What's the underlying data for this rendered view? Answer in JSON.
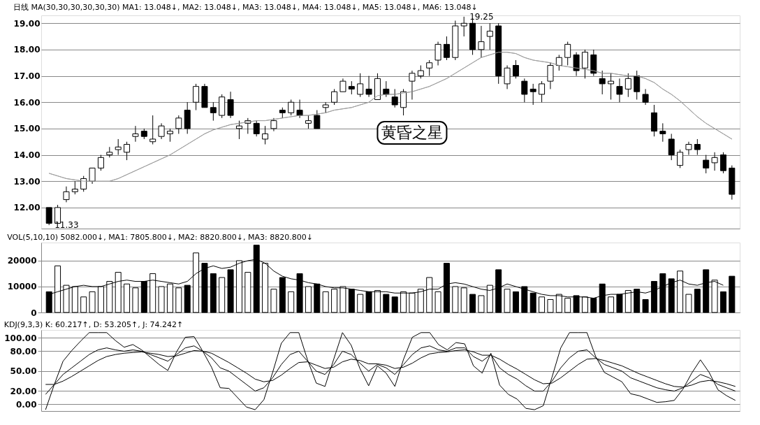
{
  "chart_data": [
    {
      "type": "candlestick",
      "title": "日线 MA(30,30,30,30,30,30) MA1: 13.048↓, MA2: 13.048↓, MA3: 13.048↓, MA4: 13.048↓, MA5: 13.048↓, MA6: 13.048↓",
      "categories": [
        null,
        null,
        null,
        null,
        null,
        null,
        null,
        null,
        null,
        null,
        null,
        null,
        null,
        null,
        null,
        null,
        null,
        null,
        null,
        null,
        null,
        null,
        null,
        null,
        null,
        null,
        null,
        null,
        null,
        null,
        null,
        null,
        null,
        null,
        null,
        null,
        null,
        null,
        null,
        null,
        null,
        null,
        null,
        null,
        null,
        null,
        null,
        null,
        null,
        null,
        null,
        null,
        null,
        null,
        null,
        null,
        null,
        null,
        null,
        null,
        null,
        null,
        null,
        null,
        null,
        null,
        null,
        null,
        null,
        null,
        null,
        null,
        null,
        null,
        null,
        null,
        null,
        null,
        null,
        null
      ],
      "ohlc": [
        [
          12.0,
          12.0,
          11.33,
          11.4
        ],
        [
          11.4,
          12.1,
          11.4,
          12.0
        ],
        [
          12.3,
          12.8,
          12.2,
          12.6
        ],
        [
          12.6,
          13.0,
          12.5,
          12.7
        ],
        [
          12.7,
          13.2,
          12.6,
          13.1
        ],
        [
          13.0,
          13.5,
          12.9,
          13.5
        ],
        [
          13.5,
          14.0,
          13.4,
          13.9
        ],
        [
          14.0,
          14.3,
          13.9,
          14.1
        ],
        [
          14.2,
          14.6,
          14.0,
          14.3
        ],
        [
          14.1,
          14.5,
          13.8,
          14.4
        ],
        [
          14.7,
          15.1,
          14.5,
          14.8
        ],
        [
          14.9,
          15.0,
          14.6,
          14.7
        ],
        [
          14.5,
          15.5,
          14.4,
          14.6
        ],
        [
          14.7,
          15.2,
          14.6,
          15.1
        ],
        [
          14.8,
          15.0,
          14.5,
          14.9
        ],
        [
          15.0,
          15.5,
          14.8,
          15.4
        ],
        [
          15.7,
          16.0,
          14.8,
          15.0
        ],
        [
          16.0,
          16.7,
          15.7,
          16.6
        ],
        [
          16.6,
          16.7,
          15.8,
          15.8
        ],
        [
          15.8,
          16.0,
          15.3,
          15.6
        ],
        [
          15.5,
          16.3,
          15.4,
          16.2
        ],
        [
          16.1,
          16.4,
          15.4,
          15.5
        ],
        [
          15.0,
          15.3,
          14.6,
          15.1
        ],
        [
          15.2,
          15.4,
          14.8,
          15.3
        ],
        [
          15.2,
          15.3,
          14.7,
          14.8
        ],
        [
          14.6,
          15.1,
          14.4,
          14.8
        ],
        [
          15.0,
          15.4,
          14.9,
          15.3
        ],
        [
          15.7,
          15.8,
          15.4,
          15.6
        ],
        [
          15.6,
          16.1,
          15.5,
          16.0
        ],
        [
          15.7,
          16.1,
          15.4,
          15.5
        ],
        [
          15.2,
          15.5,
          15.0,
          15.3
        ],
        [
          15.5,
          15.7,
          15.0,
          15.0
        ],
        [
          15.8,
          16.0,
          15.6,
          15.9
        ],
        [
          16.0,
          16.5,
          15.9,
          16.4
        ],
        [
          16.4,
          16.9,
          16.4,
          16.8
        ],
        [
          16.6,
          16.8,
          16.3,
          16.5
        ],
        [
          16.3,
          17.1,
          16.2,
          16.7
        ],
        [
          16.5,
          17.0,
          16.2,
          16.3
        ],
        [
          16.1,
          17.1,
          16.1,
          16.9
        ],
        [
          16.5,
          16.8,
          16.2,
          16.3
        ],
        [
          16.2,
          16.5,
          15.8,
          15.9
        ],
        [
          15.8,
          16.5,
          15.5,
          16.4
        ],
        [
          16.8,
          17.2,
          16.1,
          17.1
        ],
        [
          17.0,
          17.4,
          16.9,
          17.2
        ],
        [
          17.3,
          17.6,
          17.0,
          17.5
        ],
        [
          17.6,
          18.3,
          17.4,
          18.2
        ],
        [
          18.2,
          18.5,
          17.6,
          17.7
        ],
        [
          17.7,
          19.1,
          17.6,
          18.9
        ],
        [
          18.9,
          19.25,
          18.5,
          19.0
        ],
        [
          19.0,
          19.2,
          17.8,
          18.0
        ],
        [
          18.0,
          18.9,
          17.7,
          18.3
        ],
        [
          18.5,
          19.0,
          18.0,
          18.7
        ],
        [
          18.9,
          19.0,
          16.7,
          17.0
        ],
        [
          16.7,
          17.4,
          16.5,
          17.3
        ],
        [
          17.4,
          17.6,
          16.9,
          17.0
        ],
        [
          16.8,
          16.9,
          16.0,
          16.3
        ],
        [
          16.5,
          16.7,
          15.9,
          16.4
        ],
        [
          16.3,
          16.8,
          16.0,
          16.7
        ],
        [
          16.8,
          17.5,
          16.5,
          17.4
        ],
        [
          17.4,
          17.8,
          17.2,
          17.7
        ],
        [
          17.7,
          18.3,
          17.4,
          18.2
        ],
        [
          17.8,
          17.9,
          17.0,
          17.2
        ],
        [
          17.3,
          18.0,
          16.9,
          17.9
        ],
        [
          17.8,
          18.0,
          17.0,
          17.1
        ],
        [
          16.9,
          17.2,
          16.3,
          16.7
        ],
        [
          16.7,
          17.1,
          16.1,
          16.8
        ],
        [
          16.6,
          16.9,
          16.0,
          16.3
        ],
        [
          16.5,
          17.1,
          16.2,
          16.9
        ],
        [
          17.0,
          17.2,
          16.1,
          16.4
        ],
        [
          16.3,
          16.5,
          15.9,
          16.0
        ],
        [
          15.6,
          15.9,
          14.7,
          14.9
        ],
        [
          14.9,
          15.2,
          14.5,
          14.8
        ],
        [
          14.6,
          14.8,
          13.8,
          14.0
        ],
        [
          13.6,
          14.2,
          13.5,
          14.1
        ],
        [
          14.2,
          14.5,
          14.0,
          14.4
        ],
        [
          14.4,
          14.6,
          14.0,
          14.2
        ],
        [
          13.8,
          14.0,
          13.3,
          13.5
        ],
        [
          13.7,
          14.1,
          13.4,
          13.9
        ],
        [
          14.0,
          14.1,
          13.3,
          13.4
        ],
        [
          13.5,
          13.6,
          12.3,
          12.5
        ]
      ],
      "series": [
        {
          "type": "line",
          "color": "#a0a0a0",
          "values": [
            13.3,
            13.2,
            13.1,
            13.05,
            13.0,
            13.0,
            13.0,
            13.0,
            13.1,
            13.25,
            13.4,
            13.55,
            13.7,
            13.85,
            14.0,
            14.2,
            14.4,
            14.6,
            14.8,
            14.95,
            15.05,
            15.15,
            15.2,
            15.25,
            15.3,
            15.3,
            15.35,
            15.4,
            15.45,
            15.5,
            15.5,
            15.55,
            15.6,
            15.7,
            15.75,
            15.8,
            15.9,
            16.0,
            16.25,
            16.3,
            16.3,
            16.35,
            16.4,
            16.5,
            16.6,
            16.75,
            16.9,
            17.1,
            17.3,
            17.5,
            17.7,
            17.8,
            17.9,
            17.9,
            17.85,
            17.7,
            17.6,
            17.55,
            17.5,
            17.4,
            17.35,
            17.3,
            17.25,
            17.2,
            17.1,
            17.1,
            17.05,
            17.0,
            17.0,
            16.9,
            16.75,
            16.5,
            16.3,
            16.05,
            15.75,
            15.45,
            15.2,
            15.0,
            14.8,
            14.6
          ]
        }
      ],
      "ylim": [
        11.2,
        19.3
      ],
      "yticks": [
        {
          "value": 12,
          "label": "12.00"
        },
        {
          "value": 13,
          "label": "13.00"
        },
        {
          "value": 14,
          "label": "14.00"
        },
        {
          "value": 15,
          "label": "15.00"
        },
        {
          "value": 16,
          "label": "16.00"
        },
        {
          "value": 17,
          "label": "17.00"
        },
        {
          "value": 18,
          "label": "18.00"
        },
        {
          "value": 19,
          "label": "19.00"
        }
      ],
      "grid": "y",
      "tick_labels": "y",
      "annotations": [
        "19.25",
        "11.33",
        "黄昏之星"
      ]
    },
    {
      "type": "bar",
      "title": "VOL(5,10,10) 5082.000↓, MA1: 7805.800↓, MA2: 8820.800↓, MA3: 8820.800↓",
      "categories": [
        null,
        null,
        null,
        null,
        null,
        null,
        null,
        null,
        null,
        null,
        null,
        null,
        null,
        null,
        null,
        null,
        null,
        null,
        null,
        null,
        null,
        null,
        null,
        null,
        null,
        null,
        null,
        null,
        null,
        null,
        null,
        null,
        null,
        null,
        null,
        null,
        null,
        null,
        null,
        null,
        null,
        null,
        null,
        null,
        null,
        null,
        null,
        null,
        null,
        null,
        null,
        null,
        null,
        null,
        null,
        null,
        null,
        null,
        null,
        null,
        null,
        null,
        null,
        null,
        null,
        null,
        null,
        null,
        null,
        null,
        null,
        null,
        null,
        null,
        null,
        null,
        null,
        null,
        null,
        null
      ],
      "series": [
        {
          "type": "bar",
          "color": "#000000",
          "colors": [
            "#000000",
            "#ffffff",
            "#ffffff",
            "#ffffff",
            "#ffffff",
            "#ffffff",
            "#ffffff",
            "#ffffff",
            "#ffffff",
            "#ffffff",
            "#ffffff",
            "#000000",
            "#ffffff",
            "#ffffff",
            "#ffffff",
            "#ffffff",
            "#000000",
            "#ffffff",
            "#000000",
            "#000000",
            "#ffffff",
            "#000000",
            "#ffffff",
            "#ffffff",
            "#000000",
            "#ffffff",
            "#ffffff",
            "#000000",
            "#ffffff",
            "#000000",
            "#ffffff",
            "#000000",
            "#ffffff",
            "#ffffff",
            "#ffffff",
            "#000000",
            "#ffffff",
            "#000000",
            "#ffffff",
            "#000000",
            "#000000",
            "#ffffff",
            "#ffffff",
            "#ffffff",
            "#ffffff",
            "#ffffff",
            "#000000",
            "#ffffff",
            "#ffffff",
            "#000000",
            "#ffffff",
            "#ffffff",
            "#000000",
            "#ffffff",
            "#000000",
            "#000000",
            "#000000",
            "#ffffff",
            "#ffffff",
            "#ffffff",
            "#ffffff",
            "#000000",
            "#ffffff",
            "#000000",
            "#000000",
            "#ffffff",
            "#000000",
            "#ffffff",
            "#000000",
            "#000000",
            "#000000",
            "#000000",
            "#000000",
            "#ffffff",
            "#ffffff",
            "#000000",
            "#000000",
            "#ffffff",
            "#000000",
            "#000000"
          ],
          "values": [
            8000,
            18000,
            10500,
            10000,
            6000,
            8000,
            10000,
            12000,
            15500,
            11000,
            9500,
            12000,
            15000,
            10000,
            11000,
            9500,
            10500,
            23000,
            19000,
            15000,
            13500,
            16500,
            20000,
            15500,
            26000,
            19000,
            9000,
            13500,
            8000,
            15000,
            10000,
            11000,
            8000,
            9000,
            10000,
            9000,
            7000,
            8000,
            8500,
            7000,
            6000,
            8000,
            7500,
            9000,
            13500,
            8000,
            19000,
            10000,
            9500,
            7000,
            6500,
            10500,
            16500,
            9000,
            8000,
            10000,
            7500,
            6000,
            5000,
            7000,
            5500,
            6500,
            6000,
            5500,
            11000,
            6000,
            7000,
            8500,
            9000,
            5000,
            12000,
            15000,
            13000,
            16000,
            7000,
            9000,
            16500,
            12500,
            8000,
            14000
          ]
        },
        {
          "type": "line",
          "color": "#000000",
          "values": [
            7000,
            8000,
            9000,
            10000,
            10500,
            10000,
            10000,
            11000,
            12000,
            12500,
            12000,
            12000,
            12500,
            12000,
            11500,
            11000,
            12000,
            15000,
            17000,
            18000,
            17000,
            17500,
            19000,
            20000,
            20500,
            19000,
            16000,
            14000,
            13000,
            12500,
            11500,
            11000,
            10000,
            9500,
            9500,
            9000,
            8500,
            8000,
            8000,
            8000,
            7500,
            7500,
            7500,
            8000,
            9000,
            9000,
            11000,
            11500,
            11000,
            10000,
            9000,
            8500,
            9500,
            11000,
            10000,
            9000,
            8000,
            7000,
            6500,
            6500,
            6000,
            6000,
            6000,
            5500,
            6500,
            7000,
            7000,
            7500,
            8000,
            7500,
            8500,
            10000,
            11500,
            12500,
            11000,
            10500,
            11500,
            12000,
            10500,
            null
          ]
        }
      ],
      "ylim": [
        0,
        27000
      ],
      "yticks": [
        0,
        {
          "value": 10000,
          "label": "10000"
        },
        {
          "value": 20000,
          "label": "20000"
        }
      ],
      "grid": "y",
      "tick_labels": "y"
    },
    {
      "type": "line",
      "title": "KDJ(9,3,3) K: 60.217↑, D: 53.205↑, J: 74.242↑",
      "categories": [
        null,
        null,
        null,
        null,
        null,
        null,
        null,
        null,
        null,
        null,
        null,
        null,
        null,
        null,
        null,
        null,
        null,
        null,
        null,
        null,
        null,
        null,
        null,
        null,
        null,
        null,
        null,
        null,
        null,
        null,
        null,
        null,
        null,
        null,
        null,
        null,
        null,
        null,
        null,
        null,
        null,
        null,
        null,
        null,
        null,
        null,
        null,
        null,
        null,
        null,
        null,
        null,
        null,
        null,
        null,
        null,
        null,
        null,
        null,
        null,
        null,
        null,
        null,
        null,
        null,
        null,
        null,
        null,
        null,
        null,
        null,
        null,
        null,
        null,
        null,
        null,
        null,
        null,
        null,
        null
      ],
      "series": [
        {
          "color": "#000000",
          "values": [
            15,
            30,
            45,
            55,
            65,
            75,
            82,
            85,
            82,
            80,
            82,
            80,
            75,
            70,
            65,
            75,
            85,
            88,
            80,
            70,
            55,
            50,
            40,
            30,
            20,
            25,
            40,
            60,
            75,
            80,
            65,
            50,
            45,
            60,
            80,
            75,
            62,
            50,
            60,
            55,
            45,
            60,
            75,
            85,
            88,
            82,
            80,
            85,
            85,
            72,
            65,
            75,
            55,
            45,
            38,
            28,
            20,
            20,
            35,
            55,
            70,
            80,
            82,
            70,
            60,
            55,
            50,
            40,
            35,
            30,
            25,
            22,
            20,
            25,
            35,
            45,
            40,
            30,
            25,
            20
          ]
        },
        {
          "color": "#000000",
          "values": [
            30,
            30,
            35,
            42,
            50,
            58,
            66,
            72,
            75,
            77,
            78,
            79,
            77,
            75,
            72,
            73,
            77,
            81,
            80,
            77,
            70,
            63,
            55,
            47,
            38,
            34,
            36,
            44,
            54,
            63,
            64,
            59,
            54,
            56,
            64,
            68,
            66,
            61,
            61,
            59,
            54,
            56,
            62,
            70,
            76,
            78,
            79,
            81,
            82,
            79,
            74,
            74,
            68,
            60,
            53,
            45,
            37,
            31,
            32,
            40,
            50,
            60,
            68,
            69,
            66,
            62,
            58,
            52,
            46,
            41,
            36,
            31,
            27,
            26,
            29,
            34,
            36,
            34,
            31,
            27
          ]
        },
        {
          "color": "#000000",
          "values": [
            -8,
            30,
            65,
            81,
            95,
            108,
            108,
            108,
            96,
            86,
            90,
            82,
            71,
            60,
            51,
            79,
            101,
            102,
            80,
            56,
            25,
            24,
            10,
            -4,
            -8,
            7,
            48,
            92,
            108,
            108,
            67,
            32,
            27,
            68,
            108,
            89,
            54,
            28,
            58,
            47,
            27,
            68,
            101,
            108,
            108,
            90,
            82,
            93,
            91,
            58,
            47,
            77,
            29,
            15,
            8,
            -6,
            -8,
            -2,
            41,
            85,
            108,
            108,
            108,
            72,
            48,
            41,
            34,
            16,
            13,
            8,
            3,
            4,
            6,
            23,
            47,
            67,
            48,
            22,
            13,
            6
          ]
        }
      ],
      "ylim": [
        -10,
        112
      ],
      "yticks": [
        {
          "value": 0,
          "label": "0.00"
        },
        {
          "value": 20,
          "label": "20.00"
        },
        {
          "value": 50,
          "label": "50.00"
        },
        {
          "value": 80,
          "label": "80.00"
        },
        {
          "value": 100,
          "label": "100.00"
        }
      ],
      "grid": "y",
      "tick_labels": "y"
    }
  ]
}
